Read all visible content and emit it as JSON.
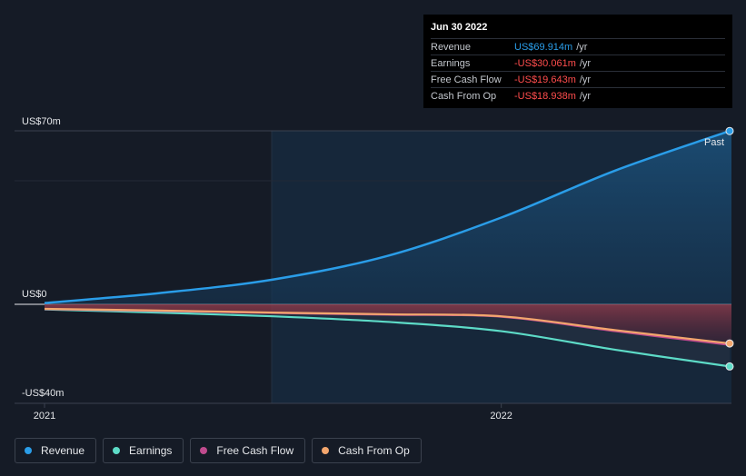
{
  "tooltip": {
    "date": "Jun 30 2022",
    "rows": [
      {
        "label": "Revenue",
        "value": "US$69.914m",
        "unit": "/yr",
        "color": "#2a9de8"
      },
      {
        "label": "Earnings",
        "value": "-US$30.061m",
        "unit": "/yr",
        "color": "#ff4d4d"
      },
      {
        "label": "Free Cash Flow",
        "value": "-US$19.643m",
        "unit": "/yr",
        "color": "#ff4d4d"
      },
      {
        "label": "Cash From Op",
        "value": "-US$18.938m",
        "unit": "/yr",
        "color": "#ff4d4d"
      }
    ]
  },
  "past_label": "Past",
  "chart_data": {
    "type": "area",
    "title": "",
    "y_tick_labels": [
      "US$70m",
      "US$0",
      "-US$40m"
    ],
    "y_ticks": [
      70,
      0,
      -40
    ],
    "ylim": [
      -40,
      70
    ],
    "x_tick_labels": [
      "2021",
      "2022"
    ],
    "x_ticks": [
      2021.0,
      2022.0
    ],
    "xlim": [
      2021.0,
      2022.5
    ],
    "x": [
      2021.0,
      2021.25,
      2021.5,
      2021.75,
      2022.0,
      2022.25,
      2022.5
    ],
    "series": [
      {
        "name": "Revenue",
        "color": "#2a9de8",
        "values": [
          0.5,
          4.5,
          10.0,
          19.5,
          35.0,
          54.0,
          69.914
        ]
      },
      {
        "name": "Earnings",
        "color": "#5ddbc7",
        "values": [
          -2.5,
          -4.0,
          -5.8,
          -8.5,
          -13.0,
          -22.0,
          -30.061
        ]
      },
      {
        "name": "Free Cash Flow",
        "color": "#c04b8e",
        "values": [
          -2.3,
          -3.2,
          -4.2,
          -5.0,
          -6.0,
          -13.0,
          -19.643
        ]
      },
      {
        "name": "Cash From Op",
        "color": "#f3a66d",
        "values": [
          -2.2,
          -3.0,
          -4.0,
          -4.8,
          -5.8,
          -12.5,
          -18.938
        ]
      }
    ]
  }
}
